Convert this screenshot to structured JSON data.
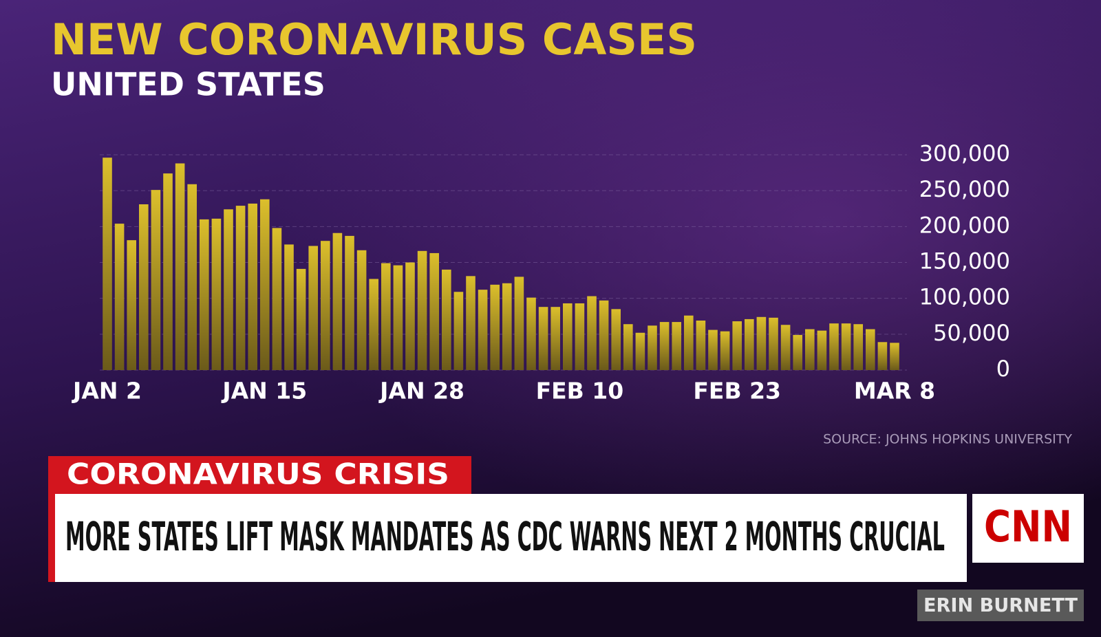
{
  "chart_data": {
    "type": "bar",
    "title": "NEW CORONAVIRUS CASES",
    "subtitle": "UNITED STATES",
    "categories": [
      "JAN 2",
      null,
      null,
      null,
      null,
      null,
      null,
      null,
      null,
      null,
      null,
      null,
      null,
      "JAN 15",
      null,
      null,
      null,
      null,
      null,
      null,
      null,
      null,
      null,
      null,
      null,
      null,
      "JAN 28",
      null,
      null,
      null,
      null,
      null,
      null,
      null,
      null,
      null,
      null,
      null,
      null,
      "FEB 10",
      null,
      null,
      null,
      null,
      null,
      null,
      null,
      null,
      null,
      null,
      null,
      null,
      "FEB 23",
      null,
      null,
      null,
      null,
      null,
      null,
      null,
      null,
      null,
      null,
      null,
      null,
      "MAR 8"
    ],
    "values": [
      296000,
      204000,
      181000,
      231000,
      251000,
      274000,
      288000,
      259000,
      210000,
      211000,
      224000,
      229000,
      232000,
      238000,
      198000,
      175000,
      141000,
      173000,
      180000,
      191000,
      187000,
      167000,
      127000,
      149000,
      146000,
      150000,
      166000,
      163000,
      140000,
      109000,
      131000,
      112000,
      119000,
      121000,
      130000,
      101000,
      88000,
      88000,
      93000,
      93000,
      103000,
      97000,
      85000,
      64000,
      52000,
      62000,
      67000,
      67000,
      76000,
      69000,
      56000,
      54000,
      68000,
      71000,
      74000,
      73000,
      63000,
      49000,
      57000,
      55000,
      65000,
      65000,
      64000,
      57000,
      39000,
      38000
    ],
    "color": "#dcbf2c",
    "ylim": [
      0,
      300000
    ],
    "yticks": [
      0,
      {
        "value": 50000,
        "label": "50,000"
      },
      {
        "value": 100000,
        "label": "100,000"
      },
      {
        "value": 150000,
        "label": "150,000"
      },
      {
        "value": 200000,
        "label": "200,000"
      },
      {
        "value": 250000,
        "label": "250,000"
      },
      {
        "value": 300000,
        "label": "300,000"
      }
    ],
    "grid": true,
    "source": "SOURCE: JOHNS HOPKINS UNIVERSITY"
  },
  "lower_third": {
    "tag": "CORONAVIRUS CRISIS",
    "headline": "MORE STATES LIFT MASK MANDATES AS CDC WARNS NEXT 2 MONTHS CRUCIAL",
    "logo": "CNN",
    "anchor": "ERIN BURNETT"
  }
}
